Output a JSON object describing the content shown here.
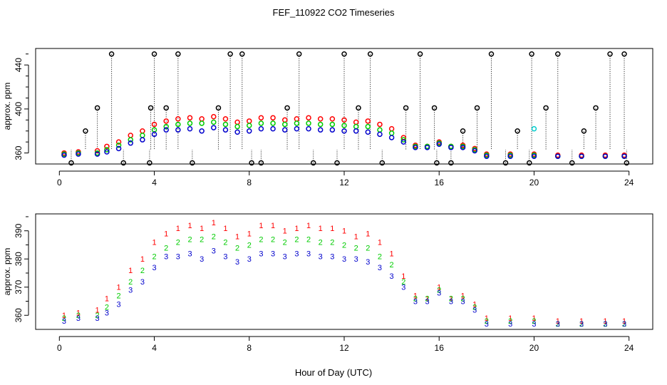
{
  "title": "FEF_110922  CO2 Timeseries",
  "xlabel": "Hour of Day (UTC)",
  "colors": {
    "series1": "#ff0000",
    "series2": "#00cc00",
    "series3": "#0000cc",
    "spike": "#000000",
    "cyan": "#00cccc"
  },
  "chart_data": [
    {
      "type": "scatter",
      "panel": "top",
      "ylabel": "approx. ppm",
      "xlim": [
        -1,
        25
      ],
      "ylim": [
        350,
        455
      ],
      "xticks": [
        0,
        4,
        8,
        12,
        16,
        20,
        24
      ],
      "yticks": [
        360,
        400,
        440
      ],
      "x_tick_labels": [
        "0",
        "4",
        "8",
        "12",
        "16",
        "20",
        "24"
      ],
      "y_tick_labels": [
        "360",
        "400",
        "440"
      ],
      "marker": "circle",
      "series": [
        {
          "name": "1",
          "color": "#ff0000",
          "x": [
            0.2,
            0.8,
            1.6,
            2.0,
            2.5,
            3.0,
            3.5,
            4.0,
            4.5,
            5.0,
            5.5,
            6.0,
            6.5,
            7.0,
            7.5,
            8.0,
            8.5,
            9.0,
            9.5,
            10.0,
            10.5,
            11.0,
            11.5,
            12.0,
            12.5,
            13.0,
            13.5,
            14.0,
            14.5,
            15.0,
            15.5,
            16.0,
            16.5,
            17.0,
            17.5,
            18.0,
            19.0,
            20.0,
            21.0,
            22.0,
            23.0,
            23.8
          ],
          "y": [
            360,
            361,
            362,
            366,
            370,
            376,
            380,
            386,
            389,
            391,
            392,
            391,
            393,
            391,
            388,
            389,
            392,
            392,
            390,
            391,
            392,
            391,
            391,
            390,
            388,
            389,
            386,
            382,
            374,
            367,
            366,
            370,
            366,
            367,
            364,
            359,
            359,
            359,
            358,
            358,
            358,
            358
          ]
        },
        {
          "name": "2",
          "color": "#00cc00",
          "x": [
            0.2,
            0.8,
            1.6,
            2.0,
            2.5,
            3.0,
            3.5,
            4.0,
            4.5,
            5.0,
            5.5,
            6.0,
            6.5,
            7.0,
            7.5,
            8.0,
            8.5,
            9.0,
            9.5,
            10.0,
            10.5,
            11.0,
            11.5,
            12.0,
            12.5,
            13.0,
            13.5,
            14.0,
            14.5,
            15.0,
            15.5,
            16.0,
            16.5,
            17.0,
            17.5,
            18.0,
            19.0,
            20.0,
            21.0,
            22.0,
            23.0,
            23.8
          ],
          "y": [
            359,
            360,
            360,
            363,
            367,
            372,
            376,
            381,
            384,
            386,
            387,
            387,
            388,
            386,
            384,
            385,
            387,
            387,
            386,
            387,
            387,
            386,
            386,
            385,
            384,
            384,
            381,
            378,
            372,
            366,
            366,
            369,
            366,
            366,
            363,
            358,
            358,
            358,
            357,
            357,
            357,
            357
          ]
        },
        {
          "name": "3",
          "color": "#0000cc",
          "x": [
            0.2,
            0.8,
            1.6,
            2.0,
            2.5,
            3.0,
            3.5,
            4.0,
            4.5,
            5.0,
            5.5,
            6.0,
            6.5,
            7.0,
            7.5,
            8.0,
            8.5,
            9.0,
            9.5,
            10.0,
            10.5,
            11.0,
            11.5,
            12.0,
            12.5,
            13.0,
            13.5,
            14.0,
            14.5,
            15.0,
            15.5,
            16.0,
            16.5,
            17.0,
            17.5,
            18.0,
            19.0,
            20.0,
            21.0,
            22.0,
            23.0,
            23.8
          ],
          "y": [
            358,
            359,
            359,
            361,
            364,
            369,
            372,
            377,
            381,
            381,
            382,
            380,
            383,
            381,
            379,
            380,
            382,
            382,
            381,
            382,
            382,
            381,
            381,
            380,
            380,
            379,
            377,
            374,
            370,
            365,
            365,
            368,
            365,
            365,
            362,
            357,
            357,
            357,
            357,
            357,
            357,
            357
          ]
        },
        {
          "name": "spikes",
          "color": "#000000",
          "x": [
            0.5,
            1.1,
            1.6,
            2.2,
            2.7,
            3.8,
            3.85,
            4.0,
            4.5,
            5.0,
            5.6,
            6.7,
            7.2,
            7.7,
            8.1,
            8.5,
            9.6,
            10.1,
            10.7,
            11.7,
            12.0,
            12.6,
            13.1,
            13.6,
            14.6,
            15.2,
            15.8,
            15.9,
            16.5,
            17.0,
            17.6,
            18.2,
            18.8,
            19.3,
            19.8,
            19.9,
            20.5,
            21.0,
            21.6,
            22.1,
            22.6,
            23.2,
            23.8,
            23.9
          ],
          "y": [
            351,
            380,
            401,
            450,
            351,
            351,
            401,
            450,
            401,
            450,
            351,
            401,
            450,
            450,
            351,
            351,
            401,
            450,
            351,
            351,
            450,
            401,
            450,
            351,
            401,
            450,
            401,
            351,
            351,
            380,
            401,
            450,
            351,
            380,
            351,
            450,
            401,
            450,
            351,
            380,
            401,
            450,
            450,
            351
          ]
        },
        {
          "name": "cyan",
          "color": "#00cccc",
          "x": [
            20.0
          ],
          "y": [
            382
          ]
        }
      ]
    },
    {
      "type": "scatter",
      "panel": "bottom",
      "ylabel": "approx. ppm",
      "xlim": [
        -1,
        25
      ],
      "ylim": [
        355,
        396
      ],
      "xticks": [
        0,
        4,
        8,
        12,
        16,
        20,
        24
      ],
      "yticks": [
        360,
        370,
        380,
        390
      ],
      "x_tick_labels": [
        "0",
        "4",
        "8",
        "12",
        "16",
        "20",
        "24"
      ],
      "y_tick_labels": [
        "360",
        "370",
        "380",
        "390"
      ],
      "marker": "digit",
      "series": [
        {
          "name": "1",
          "color": "#ff0000",
          "x": [
            0.2,
            0.8,
            1.6,
            2.0,
            2.5,
            3.0,
            3.5,
            4.0,
            4.5,
            5.0,
            5.5,
            6.0,
            6.5,
            7.0,
            7.5,
            8.0,
            8.5,
            9.0,
            9.5,
            10.0,
            10.5,
            11.0,
            11.5,
            12.0,
            12.5,
            13.0,
            13.5,
            14.0,
            14.5,
            15.0,
            15.5,
            16.0,
            16.5,
            17.0,
            17.5,
            18.0,
            19.0,
            20.0,
            21.0,
            22.0,
            23.0,
            23.8
          ],
          "y": [
            360,
            361,
            362,
            366,
            370,
            376,
            380,
            386,
            389,
            391,
            392,
            391,
            393,
            391,
            388,
            389,
            392,
            392,
            390,
            391,
            392,
            391,
            391,
            390,
            388,
            389,
            386,
            382,
            374,
            367,
            366,
            370,
            366,
            367,
            364,
            359,
            359,
            359,
            358,
            358,
            358,
            358
          ]
        },
        {
          "name": "2",
          "color": "#00cc00",
          "x": [
            0.2,
            0.8,
            1.6,
            2.0,
            2.5,
            3.0,
            3.5,
            4.0,
            4.5,
            5.0,
            5.5,
            6.0,
            6.5,
            7.0,
            7.5,
            8.0,
            8.5,
            9.0,
            9.5,
            10.0,
            10.5,
            11.0,
            11.5,
            12.0,
            12.5,
            13.0,
            13.5,
            14.0,
            14.5,
            15.0,
            15.5,
            16.0,
            16.5,
            17.0,
            17.5,
            18.0,
            19.0,
            20.0,
            21.0,
            22.0,
            23.0,
            23.8
          ],
          "y": [
            359,
            360,
            360,
            363,
            367,
            372,
            376,
            381,
            384,
            386,
            387,
            387,
            388,
            386,
            384,
            385,
            387,
            387,
            386,
            387,
            387,
            386,
            386,
            385,
            384,
            384,
            381,
            378,
            372,
            366,
            366,
            369,
            366,
            366,
            363,
            358,
            358,
            358,
            357,
            357,
            357,
            357
          ]
        },
        {
          "name": "3",
          "color": "#0000cc",
          "x": [
            0.2,
            0.8,
            1.6,
            2.0,
            2.5,
            3.0,
            3.5,
            4.0,
            4.5,
            5.0,
            5.5,
            6.0,
            6.5,
            7.0,
            7.5,
            8.0,
            8.5,
            9.0,
            9.5,
            10.0,
            10.5,
            11.0,
            11.5,
            12.0,
            12.5,
            13.0,
            13.5,
            14.0,
            14.5,
            15.0,
            15.5,
            16.0,
            16.5,
            17.0,
            17.5,
            18.0,
            19.0,
            20.0,
            21.0,
            22.0,
            23.0,
            23.8
          ],
          "y": [
            358,
            359,
            359,
            361,
            364,
            369,
            372,
            377,
            381,
            381,
            382,
            380,
            383,
            381,
            379,
            380,
            382,
            382,
            381,
            382,
            382,
            381,
            381,
            380,
            380,
            379,
            377,
            374,
            370,
            365,
            365,
            368,
            365,
            365,
            362,
            357,
            357,
            357,
            357,
            357,
            357,
            357
          ]
        }
      ]
    }
  ]
}
